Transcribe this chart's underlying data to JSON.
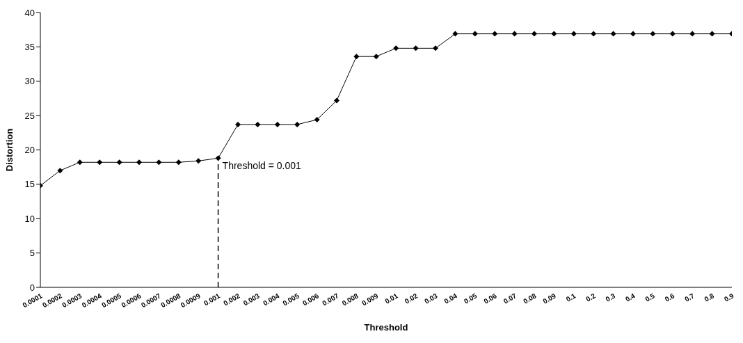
{
  "chart_data": {
    "type": "line",
    "xlabel": "Threshold",
    "ylabel": "Distortion",
    "categories": [
      "0.0001",
      "0.0002",
      "0.0003",
      "0.0004",
      "0.0005",
      "0.0006",
      "0.0007",
      "0.0008",
      "0.0009",
      "0.001",
      "0.002",
      "0.003",
      "0.004",
      "0.005",
      "0.006",
      "0.007",
      "0.008",
      "0.009",
      "0.01",
      "0.02",
      "0.03",
      "0.04",
      "0.05",
      "0.06",
      "0.07",
      "0.08",
      "0.09",
      "0.1",
      "0.2",
      "0.3",
      "0.4",
      "0.5",
      "0.6",
      "0.7",
      "0.8",
      "0.9"
    ],
    "series": [
      {
        "color": "#000000",
        "values": [
          14.8,
          17,
          18.2,
          18.2,
          18.2,
          18.2,
          18.2,
          18.2,
          18.4,
          18.8,
          23.7,
          23.7,
          23.7,
          23.7,
          24.4,
          27.2,
          33.6,
          33.6,
          34.8,
          34.8,
          34.8,
          36.9,
          36.9,
          36.9,
          36.9,
          36.9,
          36.9,
          36.9,
          36.9,
          36.9,
          36.9,
          36.9,
          36.9,
          36.9,
          36.9,
          36.9
        ]
      }
    ],
    "ylim": [
      0,
      40
    ],
    "yticks": [
      0,
      5,
      10,
      15,
      20,
      25,
      30,
      35,
      40
    ],
    "grid": false,
    "legend": false,
    "marker": "diamond",
    "line_style": "solid",
    "ref_lines": [
      {
        "axis": "x",
        "value": "0.001",
        "label": "Threshold = 0.001",
        "line_style": "dashed",
        "color": "#000000"
      }
    ]
  }
}
